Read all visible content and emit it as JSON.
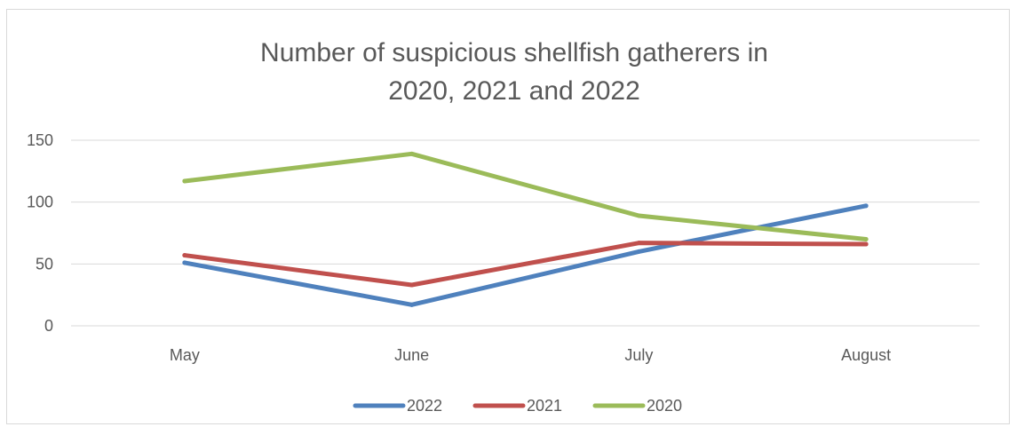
{
  "chart_data": {
    "type": "line",
    "title_lines": [
      "Number of suspicious shellfish gatherers in",
      "2020, 2021 and 2022"
    ],
    "categories": [
      "May",
      "June",
      "July",
      "August"
    ],
    "yticks": [
      "0",
      "50",
      "100",
      "150"
    ],
    "ylim": [
      0,
      150
    ],
    "grid": true,
    "legend_position": "bottom",
    "series": [
      {
        "name": "2022",
        "color": "#4f81bd",
        "values": [
          51,
          17,
          60,
          97
        ]
      },
      {
        "name": "2021",
        "color": "#c0504d",
        "values": [
          57,
          33,
          67,
          66
        ]
      },
      {
        "name": "2020",
        "color": "#9bbb59",
        "values": [
          117,
          139,
          89,
          70
        ]
      }
    ]
  }
}
